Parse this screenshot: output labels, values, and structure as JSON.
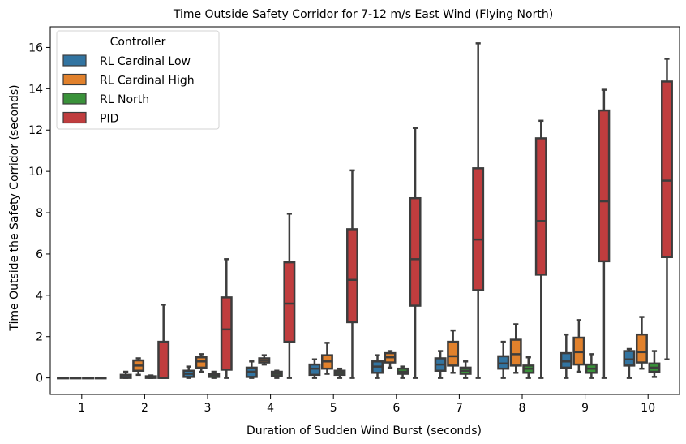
{
  "chart_data": {
    "type": "boxplot",
    "title": "Time Outside Safety Corridor for 7-12 m/s East Wind (Flying North)",
    "xlabel": "Duration of Sudden Wind Burst (seconds)",
    "ylabel": "Time Outside the Safety Corridor (seconds)",
    "ylim": [
      -0.8,
      17
    ],
    "yticks": [
      0,
      2,
      4,
      6,
      8,
      10,
      12,
      14,
      16
    ],
    "categories": [
      "1",
      "2",
      "3",
      "4",
      "5",
      "6",
      "7",
      "8",
      "9",
      "10"
    ],
    "legend": {
      "title": "Controller",
      "position": "top-left"
    },
    "grid": false,
    "series": [
      {
        "name": "RL Cardinal Low",
        "color": "#3274a1",
        "boxes": [
          {
            "min": 0,
            "q1": 0,
            "median": 0,
            "q3": 0,
            "max": 0
          },
          {
            "min": 0,
            "q1": 0,
            "median": 0.05,
            "q3": 0.15,
            "max": 0.3
          },
          {
            "min": 0,
            "q1": 0.05,
            "median": 0.2,
            "q3": 0.35,
            "max": 0.55
          },
          {
            "min": 0,
            "q1": 0.05,
            "median": 0.3,
            "q3": 0.5,
            "max": 0.8
          },
          {
            "min": 0,
            "q1": 0.15,
            "median": 0.45,
            "q3": 0.65,
            "max": 0.9
          },
          {
            "min": 0,
            "q1": 0.25,
            "median": 0.55,
            "q3": 0.8,
            "max": 1.1
          },
          {
            "min": 0,
            "q1": 0.35,
            "median": 0.65,
            "q3": 0.95,
            "max": 1.3
          },
          {
            "min": 0,
            "q1": 0.45,
            "median": 0.7,
            "q3": 1.05,
            "max": 1.75
          },
          {
            "min": 0,
            "q1": 0.5,
            "median": 0.8,
            "q3": 1.2,
            "max": 2.1
          },
          {
            "min": 0,
            "q1": 0.6,
            "median": 0.9,
            "q3": 1.3,
            "max": 1.4
          }
        ]
      },
      {
        "name": "RL Cardinal High",
        "color": "#e1812c",
        "boxes": [
          {
            "min": 0,
            "q1": 0,
            "median": 0,
            "q3": 0,
            "max": 0
          },
          {
            "min": 0.15,
            "q1": 0.35,
            "median": 0.6,
            "q3": 0.85,
            "max": 0.95
          },
          {
            "min": 0.3,
            "q1": 0.5,
            "median": 0.8,
            "q3": 1.0,
            "max": 1.15
          },
          {
            "min": 0.65,
            "q1": 0.75,
            "median": 0.85,
            "q3": 0.95,
            "max": 1.1
          },
          {
            "min": 0.2,
            "q1": 0.45,
            "median": 0.8,
            "q3": 1.1,
            "max": 1.7
          },
          {
            "min": 0.5,
            "q1": 0.75,
            "median": 1.0,
            "q3": 1.2,
            "max": 1.3
          },
          {
            "min": 0.25,
            "q1": 0.6,
            "median": 1.05,
            "q3": 1.75,
            "max": 2.3
          },
          {
            "min": 0.25,
            "q1": 0.6,
            "median": 1.15,
            "q3": 1.85,
            "max": 2.6
          },
          {
            "min": 0.3,
            "q1": 0.65,
            "median": 1.25,
            "q3": 1.95,
            "max": 2.8
          },
          {
            "min": 0.45,
            "q1": 0.75,
            "median": 1.25,
            "q3": 2.1,
            "max": 2.95
          }
        ]
      },
      {
        "name": "RL North",
        "color": "#3a923a",
        "boxes": [
          {
            "min": 0,
            "q1": 0,
            "median": 0,
            "q3": 0,
            "max": 0
          },
          {
            "min": 0,
            "q1": 0,
            "median": 0.05,
            "q3": 0.08,
            "max": 0.12
          },
          {
            "min": 0,
            "q1": 0.05,
            "median": 0.15,
            "q3": 0.2,
            "max": 0.3
          },
          {
            "min": 0,
            "q1": 0.1,
            "median": 0.2,
            "q3": 0.3,
            "max": 0.35
          },
          {
            "min": 0,
            "q1": 0.15,
            "median": 0.25,
            "q3": 0.35,
            "max": 0.45
          },
          {
            "min": 0,
            "q1": 0.2,
            "median": 0.3,
            "q3": 0.45,
            "max": 0.55
          },
          {
            "min": 0,
            "q1": 0.2,
            "median": 0.35,
            "q3": 0.5,
            "max": 0.8
          },
          {
            "min": 0,
            "q1": 0.25,
            "median": 0.45,
            "q3": 0.6,
            "max": 1.0
          },
          {
            "min": 0,
            "q1": 0.25,
            "median": 0.45,
            "q3": 0.65,
            "max": 1.15
          },
          {
            "min": 0.05,
            "q1": 0.3,
            "median": 0.5,
            "q3": 0.7,
            "max": 1.3
          }
        ]
      },
      {
        "name": "PID",
        "color": "#c03d3e",
        "boxes": [
          {
            "min": 0,
            "q1": 0,
            "median": 0,
            "q3": 0,
            "max": 0
          },
          {
            "min": 0,
            "q1": 0,
            "median": 0,
            "q3": 1.75,
            "max": 3.55
          },
          {
            "min": 0,
            "q1": 0.4,
            "median": 2.35,
            "q3": 3.9,
            "max": 5.75
          },
          {
            "min": 0,
            "q1": 1.75,
            "median": 3.6,
            "q3": 5.6,
            "max": 7.95
          },
          {
            "min": 0,
            "q1": 2.7,
            "median": 4.75,
            "q3": 7.2,
            "max": 10.05
          },
          {
            "min": 0,
            "q1": 3.5,
            "median": 5.75,
            "q3": 8.7,
            "max": 12.1
          },
          {
            "min": 0,
            "q1": 4.25,
            "median": 6.7,
            "q3": 10.15,
            "max": 16.2
          },
          {
            "min": 0,
            "q1": 5.0,
            "median": 7.6,
            "q3": 11.6,
            "max": 12.45
          },
          {
            "min": 0,
            "q1": 5.65,
            "median": 8.55,
            "q3": 12.95,
            "max": 13.95
          },
          {
            "min": 0.9,
            "q1": 5.85,
            "median": 9.55,
            "q3": 14.35,
            "max": 15.45
          }
        ]
      }
    ]
  }
}
